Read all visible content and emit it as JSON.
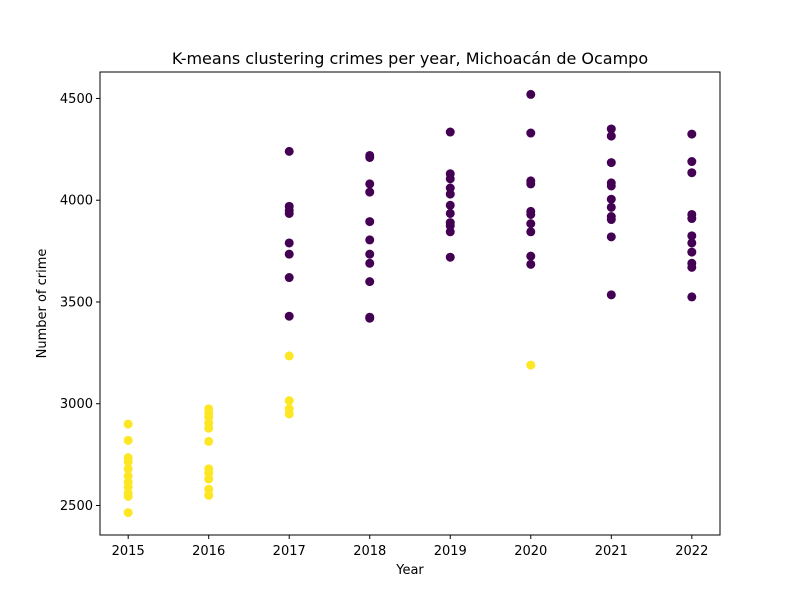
{
  "chart_data": {
    "type": "scatter",
    "title": "K-means clustering crimes per year, Michoacán de Ocampo",
    "xlabel": "Year",
    "ylabel": "Number of crime",
    "x_ticks": [
      2015,
      2016,
      2017,
      2018,
      2019,
      2020,
      2021,
      2022
    ],
    "y_ticks": [
      2500,
      3000,
      3500,
      4000,
      4500
    ],
    "xlim": [
      2014.65,
      2022.35
    ],
    "ylim": [
      2355,
      4630
    ],
    "grid": false,
    "legend": "none",
    "colors": {
      "cluster_0": "#440154",
      "cluster_1": "#fde725"
    },
    "series": [
      {
        "cluster": 0,
        "points": [
          [
            2018,
            4220
          ],
          [
            2018,
            4210
          ],
          [
            2018,
            4080
          ],
          [
            2018,
            4040
          ],
          [
            2018,
            3895
          ],
          [
            2018,
            3805
          ],
          [
            2018,
            3735
          ],
          [
            2018,
            3690
          ],
          [
            2018,
            3600
          ],
          [
            2018,
            3425
          ],
          [
            2018,
            3420
          ],
          [
            2019,
            4335
          ],
          [
            2019,
            4130
          ],
          [
            2019,
            4105
          ],
          [
            2019,
            4060
          ],
          [
            2019,
            4030
          ],
          [
            2019,
            3975
          ],
          [
            2019,
            3935
          ],
          [
            2019,
            3890
          ],
          [
            2019,
            3875
          ],
          [
            2019,
            3845
          ],
          [
            2019,
            3720
          ],
          [
            2020,
            4520
          ],
          [
            2020,
            4330
          ],
          [
            2020,
            4095
          ],
          [
            2020,
            4080
          ],
          [
            2020,
            3945
          ],
          [
            2020,
            3930
          ],
          [
            2020,
            3885
          ],
          [
            2020,
            3845
          ],
          [
            2020,
            3725
          ],
          [
            2020,
            3685
          ],
          [
            2021,
            4350
          ],
          [
            2021,
            4315
          ],
          [
            2021,
            4185
          ],
          [
            2021,
            4085
          ],
          [
            2021,
            4070
          ],
          [
            2021,
            4005
          ],
          [
            2021,
            3965
          ],
          [
            2021,
            3920
          ],
          [
            2021,
            3905
          ],
          [
            2021,
            3820
          ],
          [
            2021,
            3535
          ],
          [
            2022,
            4325
          ],
          [
            2022,
            4190
          ],
          [
            2022,
            4135
          ],
          [
            2022,
            3930
          ],
          [
            2022,
            3910
          ],
          [
            2022,
            3825
          ],
          [
            2022,
            3790
          ],
          [
            2022,
            3745
          ],
          [
            2022,
            3690
          ],
          [
            2022,
            3670
          ],
          [
            2022,
            3525
          ],
          [
            2017,
            4240
          ],
          [
            2017,
            3970
          ],
          [
            2017,
            3950
          ],
          [
            2017,
            3935
          ],
          [
            2017,
            3790
          ],
          [
            2017,
            3735
          ],
          [
            2017,
            3620
          ],
          [
            2017,
            3430
          ]
        ]
      },
      {
        "cluster": 1,
        "points": [
          [
            2015,
            2900
          ],
          [
            2015,
            2820
          ],
          [
            2015,
            2735
          ],
          [
            2015,
            2715
          ],
          [
            2015,
            2680
          ],
          [
            2015,
            2645
          ],
          [
            2015,
            2615
          ],
          [
            2015,
            2590
          ],
          [
            2015,
            2560
          ],
          [
            2015,
            2545
          ],
          [
            2015,
            2465
          ],
          [
            2016,
            2975
          ],
          [
            2016,
            2955
          ],
          [
            2016,
            2935
          ],
          [
            2016,
            2905
          ],
          [
            2016,
            2880
          ],
          [
            2016,
            2815
          ],
          [
            2016,
            2680
          ],
          [
            2016,
            2660
          ],
          [
            2016,
            2630
          ],
          [
            2016,
            2580
          ],
          [
            2016,
            2550
          ],
          [
            2017,
            3235
          ],
          [
            2017,
            3015
          ],
          [
            2017,
            2975
          ],
          [
            2017,
            2950
          ],
          [
            2020,
            3190
          ]
        ]
      }
    ]
  }
}
